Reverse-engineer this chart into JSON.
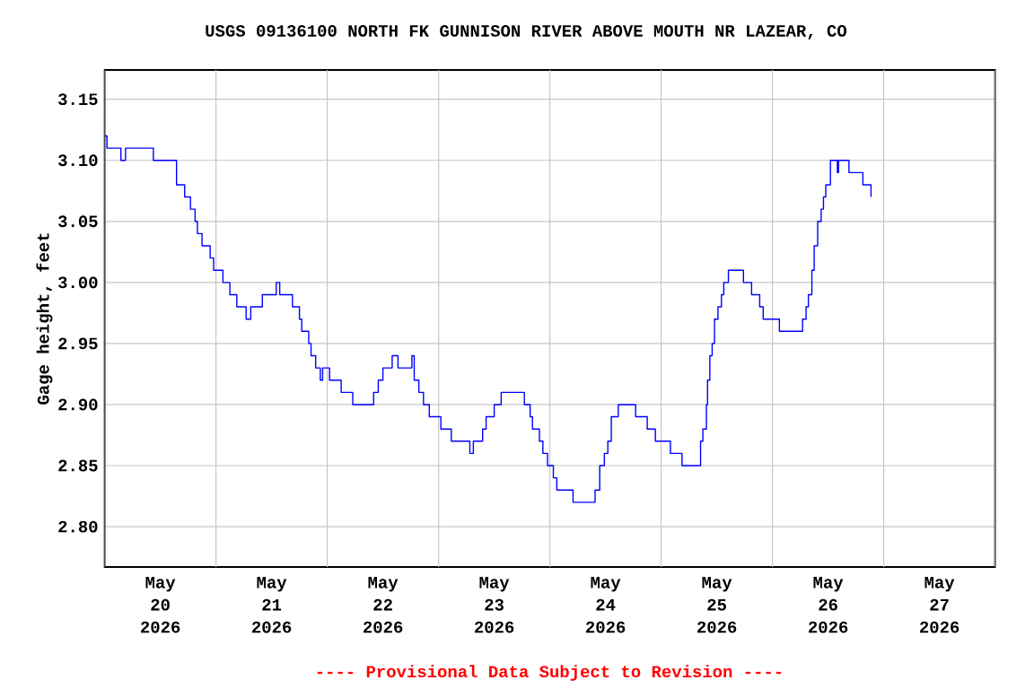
{
  "chart_data": {
    "type": "step",
    "title": "USGS 09136100 NORTH FK GUNNISON RIVER ABOVE MOUTH NR LAZEAR, CO",
    "ylabel": "Gage height, feet",
    "annotations": [
      "---- Provisional Data Subject to Revision ----"
    ],
    "x": [
      "2026-05-20T00:00",
      "2026-05-20T00:30",
      "2026-05-20T03:15",
      "2026-05-20T03:30",
      "2026-05-20T04:15",
      "2026-05-20T04:30",
      "2026-05-20T10:15",
      "2026-05-20T10:30",
      "2026-05-20T14:45",
      "2026-05-20T15:30",
      "2026-05-20T17:15",
      "2026-05-20T18:30",
      "2026-05-20T19:30",
      "2026-05-20T20:00",
      "2026-05-20T21:00",
      "2026-05-20T22:45",
      "2026-05-20T23:30",
      "2026-05-21T01:30",
      "2026-05-21T03:00",
      "2026-05-21T04:30",
      "2026-05-21T06:30",
      "2026-05-21T07:30",
      "2026-05-21T10:00",
      "2026-05-21T13:00",
      "2026-05-21T13:45",
      "2026-05-21T16:30",
      "2026-05-21T18:00",
      "2026-05-21T18:30",
      "2026-05-21T20:00",
      "2026-05-21T20:30",
      "2026-05-21T21:30",
      "2026-05-21T22:30",
      "2026-05-21T23:00",
      "2026-05-22T00:30",
      "2026-05-22T03:00",
      "2026-05-22T05:30",
      "2026-05-22T09:30",
      "2026-05-22T10:00",
      "2026-05-22T11:00",
      "2026-05-22T12:00",
      "2026-05-22T14:00",
      "2026-05-22T15:15",
      "2026-05-22T18:15",
      "2026-05-22T18:45",
      "2026-05-22T19:45",
      "2026-05-22T20:45",
      "2026-05-22T22:00",
      "2026-05-23T00:30",
      "2026-05-23T02:45",
      "2026-05-23T06:45",
      "2026-05-23T07:30",
      "2026-05-23T09:30",
      "2026-05-23T10:15",
      "2026-05-23T12:00",
      "2026-05-23T13:30",
      "2026-05-23T18:00",
      "2026-05-23T18:30",
      "2026-05-23T19:45",
      "2026-05-23T20:15",
      "2026-05-23T21:45",
      "2026-05-23T22:30",
      "2026-05-23T23:30",
      "2026-05-24T00:45",
      "2026-05-24T01:30",
      "2026-05-24T02:45",
      "2026-05-24T05:00",
      "2026-05-24T09:15",
      "2026-05-24T09:45",
      "2026-05-24T10:45",
      "2026-05-24T11:45",
      "2026-05-24T12:30",
      "2026-05-24T13:15",
      "2026-05-24T14:45",
      "2026-05-24T18:15",
      "2026-05-24T18:30",
      "2026-05-24T21:00",
      "2026-05-24T22:45",
      "2026-05-25T02:00",
      "2026-05-25T03:00",
      "2026-05-25T04:30",
      "2026-05-25T07:15",
      "2026-05-25T08:30",
      "2026-05-25T09:00",
      "2026-05-25T09:45",
      "2026-05-25T10:00",
      "2026-05-25T10:30",
      "2026-05-25T11:00",
      "2026-05-25T11:30",
      "2026-05-25T12:15",
      "2026-05-25T13:00",
      "2026-05-25T13:30",
      "2026-05-25T14:30",
      "2026-05-25T17:30",
      "2026-05-25T17:45",
      "2026-05-25T19:30",
      "2026-05-25T21:15",
      "2026-05-25T22:00",
      "2026-05-25T23:30",
      "2026-05-26T01:30",
      "2026-05-26T06:00",
      "2026-05-26T06:30",
      "2026-05-26T07:15",
      "2026-05-26T07:45",
      "2026-05-26T08:30",
      "2026-05-26T09:00",
      "2026-05-26T09:45",
      "2026-05-26T10:30",
      "2026-05-26T11:00",
      "2026-05-26T11:30",
      "2026-05-26T12:30",
      "2026-05-26T13:45",
      "2026-05-26T14:00",
      "2026-05-26T14:15",
      "2026-05-26T16:30",
      "2026-05-26T19:15",
      "2026-05-26T19:30",
      "2026-05-26T20:30",
      "2026-05-26T21:15"
    ],
    "series": [
      {
        "color": "#0000ff",
        "values": [
          3.12,
          3.11,
          3.11,
          3.1,
          3.1,
          3.11,
          3.11,
          3.1,
          3.1,
          3.08,
          3.07,
          3.06,
          3.05,
          3.04,
          3.03,
          3.02,
          3.01,
          3.0,
          2.99,
          2.98,
          2.97,
          2.98,
          2.99,
          3.0,
          2.99,
          2.98,
          2.97,
          2.96,
          2.95,
          2.94,
          2.93,
          2.92,
          2.93,
          2.92,
          2.91,
          2.9,
          2.9,
          2.91,
          2.92,
          2.93,
          2.94,
          2.93,
          2.94,
          2.92,
          2.91,
          2.9,
          2.89,
          2.88,
          2.87,
          2.86,
          2.87,
          2.88,
          2.89,
          2.9,
          2.91,
          2.91,
          2.9,
          2.89,
          2.88,
          2.87,
          2.86,
          2.85,
          2.84,
          2.83,
          2.83,
          2.82,
          2.82,
          2.83,
          2.85,
          2.86,
          2.87,
          2.89,
          2.9,
          2.9,
          2.89,
          2.88,
          2.87,
          2.86,
          2.86,
          2.85,
          2.85,
          2.87,
          2.88,
          2.9,
          2.92,
          2.94,
          2.95,
          2.97,
          2.98,
          2.99,
          3.0,
          3.01,
          3.01,
          3.0,
          2.99,
          2.98,
          2.97,
          2.97,
          2.96,
          2.96,
          2.97,
          2.98,
          2.99,
          3.01,
          3.03,
          3.05,
          3.06,
          3.07,
          3.08,
          3.1,
          3.1,
          3.09,
          3.1,
          3.09,
          3.09,
          3.08,
          3.08,
          3.07
        ]
      }
    ],
    "xlim": [
      "2026-05-20T00:00",
      "2026-05-28T00:00"
    ],
    "xticks": [
      {
        "value": "2026-05-20T00:00",
        "label": null
      },
      {
        "value": "2026-05-21T00:00",
        "label": null
      },
      {
        "value": "2026-05-22T00:00",
        "label": null
      },
      {
        "value": "2026-05-23T00:00",
        "label": null
      },
      {
        "value": "2026-05-24T00:00",
        "label": null
      },
      {
        "value": "2026-05-25T00:00",
        "label": null
      },
      {
        "value": "2026-05-26T00:00",
        "label": null
      },
      {
        "value": "2026-05-27T00:00",
        "label": null
      },
      {
        "value": "2026-05-28T00:00",
        "label": null
      },
      {
        "value": "2026-05-20T12:00",
        "label": "May 20 2026"
      },
      {
        "value": "2026-05-21T12:00",
        "label": "May 21 2026"
      },
      {
        "value": "2026-05-22T12:00",
        "label": "May 22 2026"
      },
      {
        "value": "2026-05-23T12:00",
        "label": "May 23 2026"
      },
      {
        "value": "2026-05-24T12:00",
        "label": "May 24 2026"
      },
      {
        "value": "2026-05-25T12:00",
        "label": "May 25 2026"
      },
      {
        "value": "2026-05-26T12:00",
        "label": "May 26 2026"
      },
      {
        "value": "2026-05-27T12:00",
        "label": "May 27 2026"
      }
    ],
    "ylim": [
      2.767,
      3.174
    ],
    "yticks": [
      {
        "value": 2.8,
        "label": "2.80"
      },
      2.85,
      {
        "value": 2.9,
        "label": "2.90"
      },
      2.95,
      {
        "value": 3.0,
        "label": "3.00"
      },
      3.05,
      {
        "value": 3.1,
        "label": "3.10"
      },
      3.15
    ],
    "grid": true,
    "marker": "none",
    "line_style": "solid"
  }
}
